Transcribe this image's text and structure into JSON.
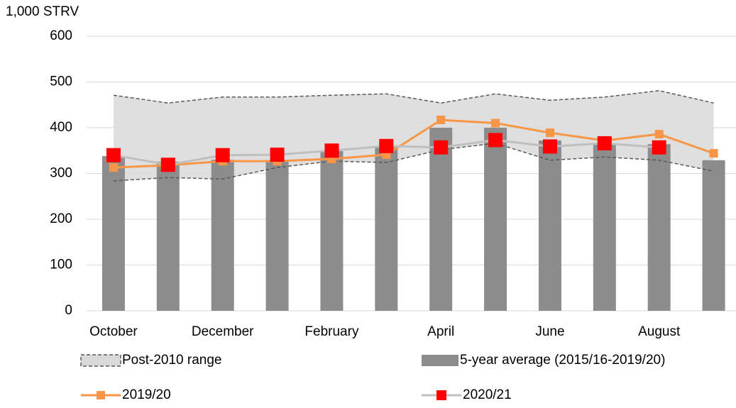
{
  "chart_data": {
    "type": "combo",
    "y_label": "1,000 STRV",
    "categories": [
      "October",
      null,
      "December",
      null,
      "February",
      null,
      "April",
      null,
      "June",
      null,
      "August",
      null
    ],
    "ylim": [
      0,
      600
    ],
    "yticks": [
      0,
      100,
      200,
      300,
      400,
      500,
      600
    ],
    "grid": true,
    "legend": "bottom",
    "series": [
      {
        "name": "Post-2010 range",
        "type": "range",
        "color": "#d9d9d9",
        "edge_color": "#595959",
        "low": [
          284,
          291,
          288,
          313,
          327,
          324,
          352,
          366,
          329,
          336,
          329,
          305
        ],
        "high": [
          471,
          454,
          467,
          467,
          471,
          474,
          454,
          474,
          460,
          467,
          481,
          454
        ]
      },
      {
        "name": "5-year average (2015/16-2019/20)",
        "type": "bar",
        "color": "#8c8c8c",
        "values": [
          338,
          326,
          330,
          329,
          349,
          360,
          400,
          400,
          372,
          364,
          364,
          329
        ]
      },
      {
        "name": "2019/20",
        "type": "line",
        "color": "#f79646",
        "marker_color": "#f79646",
        "marker_size": 12,
        "values": [
          313,
          318,
          327,
          327,
          332,
          341,
          417,
          410,
          389,
          372,
          386,
          344
        ]
      },
      {
        "name": "2020/21",
        "type": "line",
        "color": "#bfbfbf",
        "marker_color": "#ff0000",
        "marker_size": 20,
        "values": [
          340,
          319,
          340,
          341,
          350,
          360,
          357,
          373,
          359,
          366,
          357,
          null
        ]
      }
    ]
  }
}
